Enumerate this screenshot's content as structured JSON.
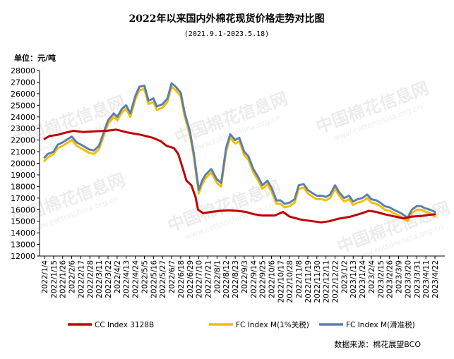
{
  "chart_data": {
    "type": "line",
    "title": "2022年以来国内外棉花现货价格走势对比图",
    "subtitle": "(2021.9.1-2023.5.18)",
    "ylabel": "单位：元/吨",
    "ylim": [
      12000,
      28000
    ],
    "y_ticks": [
      12000,
      13000,
      14000,
      15000,
      16000,
      17000,
      18000,
      19000,
      20000,
      21000,
      22000,
      23000,
      24000,
      25000,
      26000,
      27000,
      28000
    ],
    "x_ticks": [
      "2022/1/4",
      "2022/1/15",
      "2022/1/26",
      "2022/2/6",
      "2022/2/17",
      "2022/2/28",
      "2022/3/11",
      "2022/3/22",
      "2022/4/2",
      "2022/4/13",
      "2022/4/24",
      "2022/5/5",
      "2022/5/16",
      "2022/5/27",
      "2022/6/7",
      "2022/6/18",
      "2022/6/29",
      "2022/7/10",
      "2022/7/21",
      "2022/8/1",
      "2022/8/12",
      "2022/8/23",
      "2022/9/3",
      "2022/9/14",
      "2022/9/25",
      "2022/10/6",
      "2022/10/17",
      "2022/10/28",
      "2022/11/8",
      "2022/11/19",
      "2022/11/30",
      "2022/12/11",
      "2022/12/22",
      "2023/1/2",
      "2023/1/13",
      "2023/1/24",
      "2023/2/4",
      "2023/2/15",
      "2023/2/26",
      "2023/3/9",
      "2023/3/20",
      "2023/3/31",
      "2023/4/11",
      "2023/4/22"
    ],
    "grid": false,
    "legend_position": "bottom",
    "series": [
      {
        "name": "CC Index 3128B",
        "color": "#C00000",
        "points": [
          [
            "2022/1/4",
            22100
          ],
          [
            "2022/1/10",
            22350
          ],
          [
            "2022/1/20",
            22450
          ],
          [
            "2022/1/27",
            22600
          ],
          [
            "2022/2/8",
            22800
          ],
          [
            "2022/2/20",
            22700
          ],
          [
            "2022/3/5",
            22750
          ],
          [
            "2022/3/20",
            22800
          ],
          [
            "2022/4/1",
            22900
          ],
          [
            "2022/4/15",
            22650
          ],
          [
            "2022/5/1",
            22450
          ],
          [
            "2022/5/15",
            22200
          ],
          [
            "2022/5/25",
            21900
          ],
          [
            "2022/6/1",
            21500
          ],
          [
            "2022/6/10",
            21300
          ],
          [
            "2022/6/15",
            20800
          ],
          [
            "2022/6/20",
            19700
          ],
          [
            "2022/6/25",
            18500
          ],
          [
            "2022/7/1",
            18100
          ],
          [
            "2022/7/6",
            17100
          ],
          [
            "2022/7/9",
            16000
          ],
          [
            "2022/7/15",
            15700
          ],
          [
            "2022/7/25",
            15800
          ],
          [
            "2022/8/5",
            15900
          ],
          [
            "2022/8/15",
            15950
          ],
          [
            "2022/8/25",
            15900
          ],
          [
            "2022/9/5",
            15800
          ],
          [
            "2022/9/15",
            15600
          ],
          [
            "2022/9/25",
            15500
          ],
          [
            "2022/10/10",
            15500
          ],
          [
            "2022/10/20",
            15800
          ],
          [
            "2022/10/28",
            15400
          ],
          [
            "2022/11/10",
            15150
          ],
          [
            "2022/11/25",
            15000
          ],
          [
            "2022/12/5",
            14900
          ],
          [
            "2022/12/15",
            15000
          ],
          [
            "2022/12/25",
            15200
          ],
          [
            "2023/1/10",
            15400
          ],
          [
            "2023/1/24",
            15700
          ],
          [
            "2023/2/1",
            15900
          ],
          [
            "2023/2/10",
            15800
          ],
          [
            "2023/2/20",
            15600
          ],
          [
            "2023/3/5",
            15400
          ],
          [
            "2023/3/15",
            15250
          ],
          [
            "2023/3/25",
            15400
          ],
          [
            "2023/4/5",
            15450
          ],
          [
            "2023/4/15",
            15550
          ],
          [
            "2023/4/22",
            15600
          ]
        ]
      },
      {
        "name": "FC Index M(1%关税)",
        "color": "#F5BE00",
        "points": [
          [
            "2022/1/4",
            20200
          ],
          [
            "2022/1/8",
            20500
          ],
          [
            "2022/1/15",
            20800
          ],
          [
            "2022/1/20",
            21300
          ],
          [
            "2022/1/26",
            21500
          ],
          [
            "2022/2/6",
            22000
          ],
          [
            "2022/2/12",
            21500
          ],
          [
            "2022/2/20",
            21200
          ],
          [
            "2022/2/27",
            20900
          ],
          [
            "2022/3/5",
            20800
          ],
          [
            "2022/3/11",
            21200
          ],
          [
            "2022/3/16",
            22200
          ],
          [
            "2022/3/22",
            23400
          ],
          [
            "2022/3/29",
            24000
          ],
          [
            "2022/4/2",
            23700
          ],
          [
            "2022/4/8",
            24400
          ],
          [
            "2022/4/13",
            24700
          ],
          [
            "2022/4/18",
            24000
          ],
          [
            "2022/4/24",
            25500
          ],
          [
            "2022/4/29",
            26300
          ],
          [
            "2022/5/5",
            26400
          ],
          [
            "2022/5/10",
            25100
          ],
          [
            "2022/5/16",
            25300
          ],
          [
            "2022/5/20",
            24600
          ],
          [
            "2022/5/27",
            24800
          ],
          [
            "2022/6/2",
            25300
          ],
          [
            "2022/6/7",
            26600
          ],
          [
            "2022/6/12",
            26300
          ],
          [
            "2022/6/18",
            25800
          ],
          [
            "2022/6/23",
            24000
          ],
          [
            "2022/6/29",
            22500
          ],
          [
            "2022/7/4",
            20500
          ],
          [
            "2022/7/7",
            18900
          ],
          [
            "2022/7/10",
            17400
          ],
          [
            "2022/7/14",
            18200
          ],
          [
            "2022/7/18",
            18700
          ],
          [
            "2022/7/25",
            19200
          ],
          [
            "2022/8/1",
            18300
          ],
          [
            "2022/8/6",
            18000
          ],
          [
            "2022/8/12",
            21000
          ],
          [
            "2022/8/17",
            22200
          ],
          [
            "2022/8/23",
            21700
          ],
          [
            "2022/8/28",
            21900
          ],
          [
            "2022/9/3",
            20700
          ],
          [
            "2022/9/8",
            20300
          ],
          [
            "2022/9/14",
            19200
          ],
          [
            "2022/9/20",
            18500
          ],
          [
            "2022/9/25",
            17800
          ],
          [
            "2022/10/1",
            18200
          ],
          [
            "2022/10/6",
            17600
          ],
          [
            "2022/10/12",
            16500
          ],
          [
            "2022/10/17",
            16500
          ],
          [
            "2022/10/22",
            16200
          ],
          [
            "2022/10/28",
            16300
          ],
          [
            "2022/11/3",
            16600
          ],
          [
            "2022/11/8",
            17800
          ],
          [
            "2022/11/14",
            17900
          ],
          [
            "2022/11/19",
            17400
          ],
          [
            "2022/11/25",
            17100
          ],
          [
            "2022/11/30",
            16900
          ],
          [
            "2022/12/6",
            16900
          ],
          [
            "2022/12/11",
            16800
          ],
          [
            "2022/12/16",
            17000
          ],
          [
            "2022/12/22",
            17800
          ],
          [
            "2022/12/27",
            17200
          ],
          [
            "2023/1/2",
            16700
          ],
          [
            "2023/1/8",
            16900
          ],
          [
            "2023/1/13",
            16400
          ],
          [
            "2023/1/18",
            16600
          ],
          [
            "2023/1/24",
            16700
          ],
          [
            "2023/1/30",
            17000
          ],
          [
            "2023/2/4",
            16600
          ],
          [
            "2023/2/10",
            16500
          ],
          [
            "2023/2/15",
            16300
          ],
          [
            "2023/2/20",
            16000
          ],
          [
            "2023/2/26",
            15900
          ],
          [
            "2023/3/3",
            15700
          ],
          [
            "2023/3/9",
            15500
          ],
          [
            "2023/3/14",
            15300
          ],
          [
            "2023/3/20",
            15000
          ],
          [
            "2023/3/25",
            15700
          ],
          [
            "2023/3/31",
            16000
          ],
          [
            "2023/4/5",
            16000
          ],
          [
            "2023/4/11",
            15800
          ],
          [
            "2023/4/16",
            15700
          ],
          [
            "2023/4/22",
            15400
          ]
        ]
      },
      {
        "name": "FC Index M(滑准税)",
        "color": "#5B7FB0",
        "points": [
          [
            "2022/1/4",
            20500
          ],
          [
            "2022/1/8",
            20800
          ],
          [
            "2022/1/15",
            21000
          ],
          [
            "2022/1/20",
            21600
          ],
          [
            "2022/1/26",
            21800
          ],
          [
            "2022/2/6",
            22300
          ],
          [
            "2022/2/12",
            21800
          ],
          [
            "2022/2/20",
            21500
          ],
          [
            "2022/2/27",
            21200
          ],
          [
            "2022/3/5",
            21100
          ],
          [
            "2022/3/11",
            21500
          ],
          [
            "2022/3/16",
            22500
          ],
          [
            "2022/3/22",
            23700
          ],
          [
            "2022/3/29",
            24300
          ],
          [
            "2022/4/2",
            24000
          ],
          [
            "2022/4/8",
            24700
          ],
          [
            "2022/4/13",
            25000
          ],
          [
            "2022/4/18",
            24300
          ],
          [
            "2022/4/24",
            25800
          ],
          [
            "2022/4/29",
            26600
          ],
          [
            "2022/5/5",
            26700
          ],
          [
            "2022/5/10",
            25400
          ],
          [
            "2022/5/16",
            25600
          ],
          [
            "2022/5/20",
            24900
          ],
          [
            "2022/5/27",
            25100
          ],
          [
            "2022/6/2",
            25600
          ],
          [
            "2022/6/7",
            26900
          ],
          [
            "2022/6/12",
            26600
          ],
          [
            "2022/6/18",
            26100
          ],
          [
            "2022/6/23",
            24300
          ],
          [
            "2022/6/29",
            22800
          ],
          [
            "2022/7/4",
            20800
          ],
          [
            "2022/7/7",
            19200
          ],
          [
            "2022/7/10",
            17700
          ],
          [
            "2022/7/14",
            18500
          ],
          [
            "2022/7/18",
            19000
          ],
          [
            "2022/7/25",
            19500
          ],
          [
            "2022/8/1",
            18600
          ],
          [
            "2022/8/6",
            18300
          ],
          [
            "2022/8/12",
            21300
          ],
          [
            "2022/8/17",
            22500
          ],
          [
            "2022/8/23",
            22000
          ],
          [
            "2022/8/28",
            22200
          ],
          [
            "2022/9/3",
            21000
          ],
          [
            "2022/9/8",
            20600
          ],
          [
            "2022/9/14",
            19500
          ],
          [
            "2022/9/20",
            18800
          ],
          [
            "2022/9/25",
            18100
          ],
          [
            "2022/10/1",
            18500
          ],
          [
            "2022/10/6",
            17900
          ],
          [
            "2022/10/12",
            16800
          ],
          [
            "2022/10/17",
            16800
          ],
          [
            "2022/10/22",
            16500
          ],
          [
            "2022/10/28",
            16600
          ],
          [
            "2022/11/3",
            16900
          ],
          [
            "2022/11/8",
            18100
          ],
          [
            "2022/11/14",
            18200
          ],
          [
            "2022/11/19",
            17700
          ],
          [
            "2022/11/25",
            17400
          ],
          [
            "2022/11/30",
            17200
          ],
          [
            "2022/12/6",
            17200
          ],
          [
            "2022/12/11",
            17100
          ],
          [
            "2022/12/16",
            17300
          ],
          [
            "2022/12/22",
            18100
          ],
          [
            "2022/12/27",
            17500
          ],
          [
            "2023/1/2",
            17000
          ],
          [
            "2023/1/8",
            17200
          ],
          [
            "2023/1/13",
            16700
          ],
          [
            "2023/1/18",
            16900
          ],
          [
            "2023/1/24",
            17000
          ],
          [
            "2023/1/30",
            17300
          ],
          [
            "2023/2/4",
            16900
          ],
          [
            "2023/2/10",
            16800
          ],
          [
            "2023/2/15",
            16600
          ],
          [
            "2023/2/20",
            16300
          ],
          [
            "2023/2/26",
            16200
          ],
          [
            "2023/3/3",
            16000
          ],
          [
            "2023/3/9",
            15800
          ],
          [
            "2023/3/14",
            15600
          ],
          [
            "2023/3/20",
            15300
          ],
          [
            "2023/3/25",
            16000
          ],
          [
            "2023/3/31",
            16300
          ],
          [
            "2023/4/5",
            16300
          ],
          [
            "2023/4/11",
            16100
          ],
          [
            "2023/4/16",
            16000
          ],
          [
            "2023/4/22",
            15800
          ]
        ]
      }
    ],
    "source_note": "数据来源：棉花展望BCO",
    "watermark": "中国棉花信息网 www.cottonchina.org.cn"
  }
}
